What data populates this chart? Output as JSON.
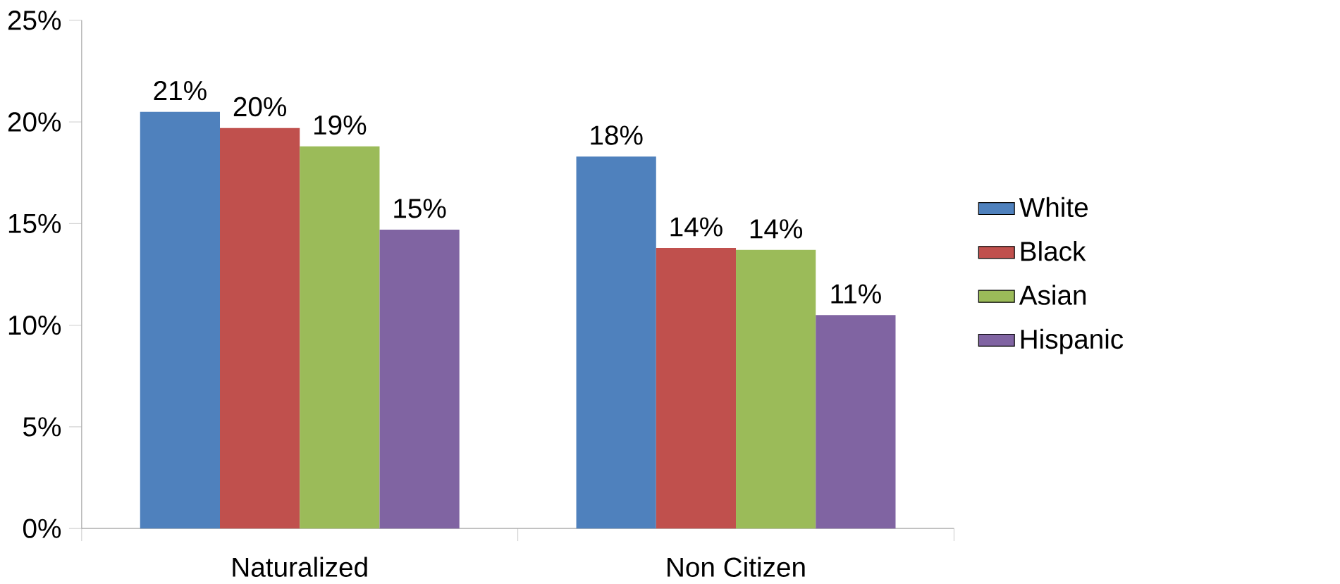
{
  "chart_data": {
    "type": "bar",
    "categories": [
      "Naturalized",
      "Non Citizen"
    ],
    "series": [
      {
        "name": "White",
        "color": "#4f81bd",
        "values": [
          20.5,
          18.3
        ],
        "value_labels": [
          "21%",
          "18%"
        ]
      },
      {
        "name": "Black",
        "color": "#c0504d",
        "values": [
          19.7,
          13.8
        ],
        "value_labels": [
          "20%",
          "14%"
        ]
      },
      {
        "name": "Asian",
        "color": "#9bbb59",
        "values": [
          18.8,
          13.7
        ],
        "value_labels": [
          "19%",
          "14%"
        ]
      },
      {
        "name": "Hispanic",
        "color": "#8064a2",
        "values": [
          14.7,
          10.5
        ],
        "value_labels": [
          "15%",
          "11%"
        ]
      }
    ],
    "ylim": [
      0,
      25
    ],
    "yticks": [
      {
        "value": 0,
        "label": "0%"
      },
      {
        "value": 5,
        "label": "5%"
      },
      {
        "value": 10,
        "label": "10%"
      },
      {
        "value": 15,
        "label": "15%"
      },
      {
        "value": 20,
        "label": "20%"
      },
      {
        "value": 25,
        "label": "25%"
      }
    ],
    "legend": "right",
    "grid": false
  }
}
